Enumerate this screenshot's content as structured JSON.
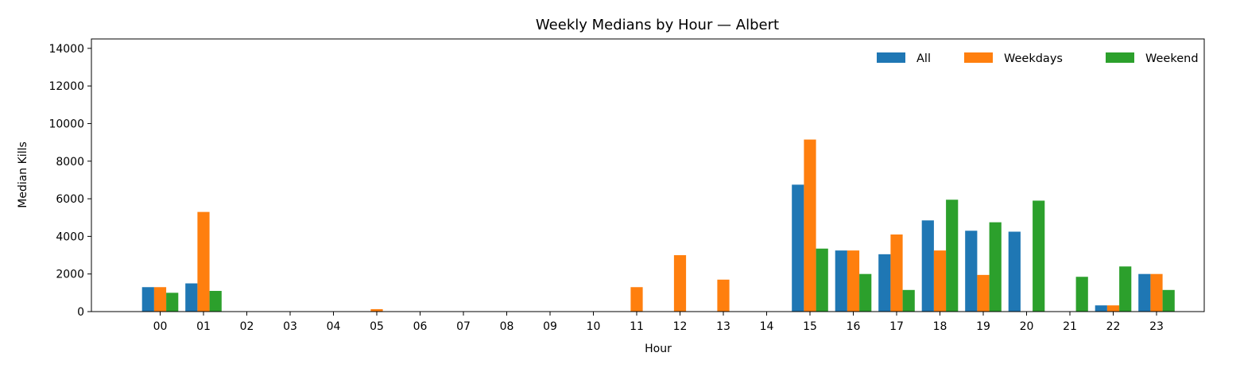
{
  "chart_data": {
    "type": "bar",
    "title": "Weekly Medians by Hour — Albert",
    "xlabel": "Hour",
    "ylabel": "Median Kills",
    "ylim": [
      0,
      14500
    ],
    "yticks": [
      0,
      2000,
      4000,
      6000,
      8000,
      10000,
      12000,
      14000
    ],
    "categories": [
      "00",
      "01",
      "02",
      "03",
      "04",
      "05",
      "06",
      "07",
      "08",
      "09",
      "10",
      "11",
      "12",
      "13",
      "14",
      "15",
      "16",
      "17",
      "18",
      "19",
      "20",
      "21",
      "22",
      "23"
    ],
    "grid": false,
    "legend": "top-right",
    "series": [
      {
        "name": "All",
        "color": "#1f77b4",
        "values": [
          1300,
          1500,
          0,
          0,
          0,
          0,
          0,
          0,
          0,
          0,
          0,
          0,
          0,
          0,
          0,
          6750,
          3250,
          3050,
          4850,
          4300,
          4250,
          0,
          330,
          2000
        ]
      },
      {
        "name": "Weekdays",
        "color": "#ff7f0e",
        "values": [
          1300,
          5300,
          0,
          0,
          0,
          130,
          0,
          0,
          0,
          0,
          0,
          1300,
          3000,
          1700,
          0,
          9150,
          3250,
          4100,
          3250,
          1950,
          0,
          0,
          330,
          2000
        ]
      },
      {
        "name": "Weekend",
        "color": "#2ca02c",
        "values": [
          1000,
          1100,
          0,
          0,
          0,
          0,
          0,
          0,
          0,
          0,
          0,
          0,
          0,
          0,
          0,
          3350,
          2000,
          1150,
          5950,
          4750,
          5900,
          1850,
          2400,
          1150
        ]
      }
    ]
  }
}
